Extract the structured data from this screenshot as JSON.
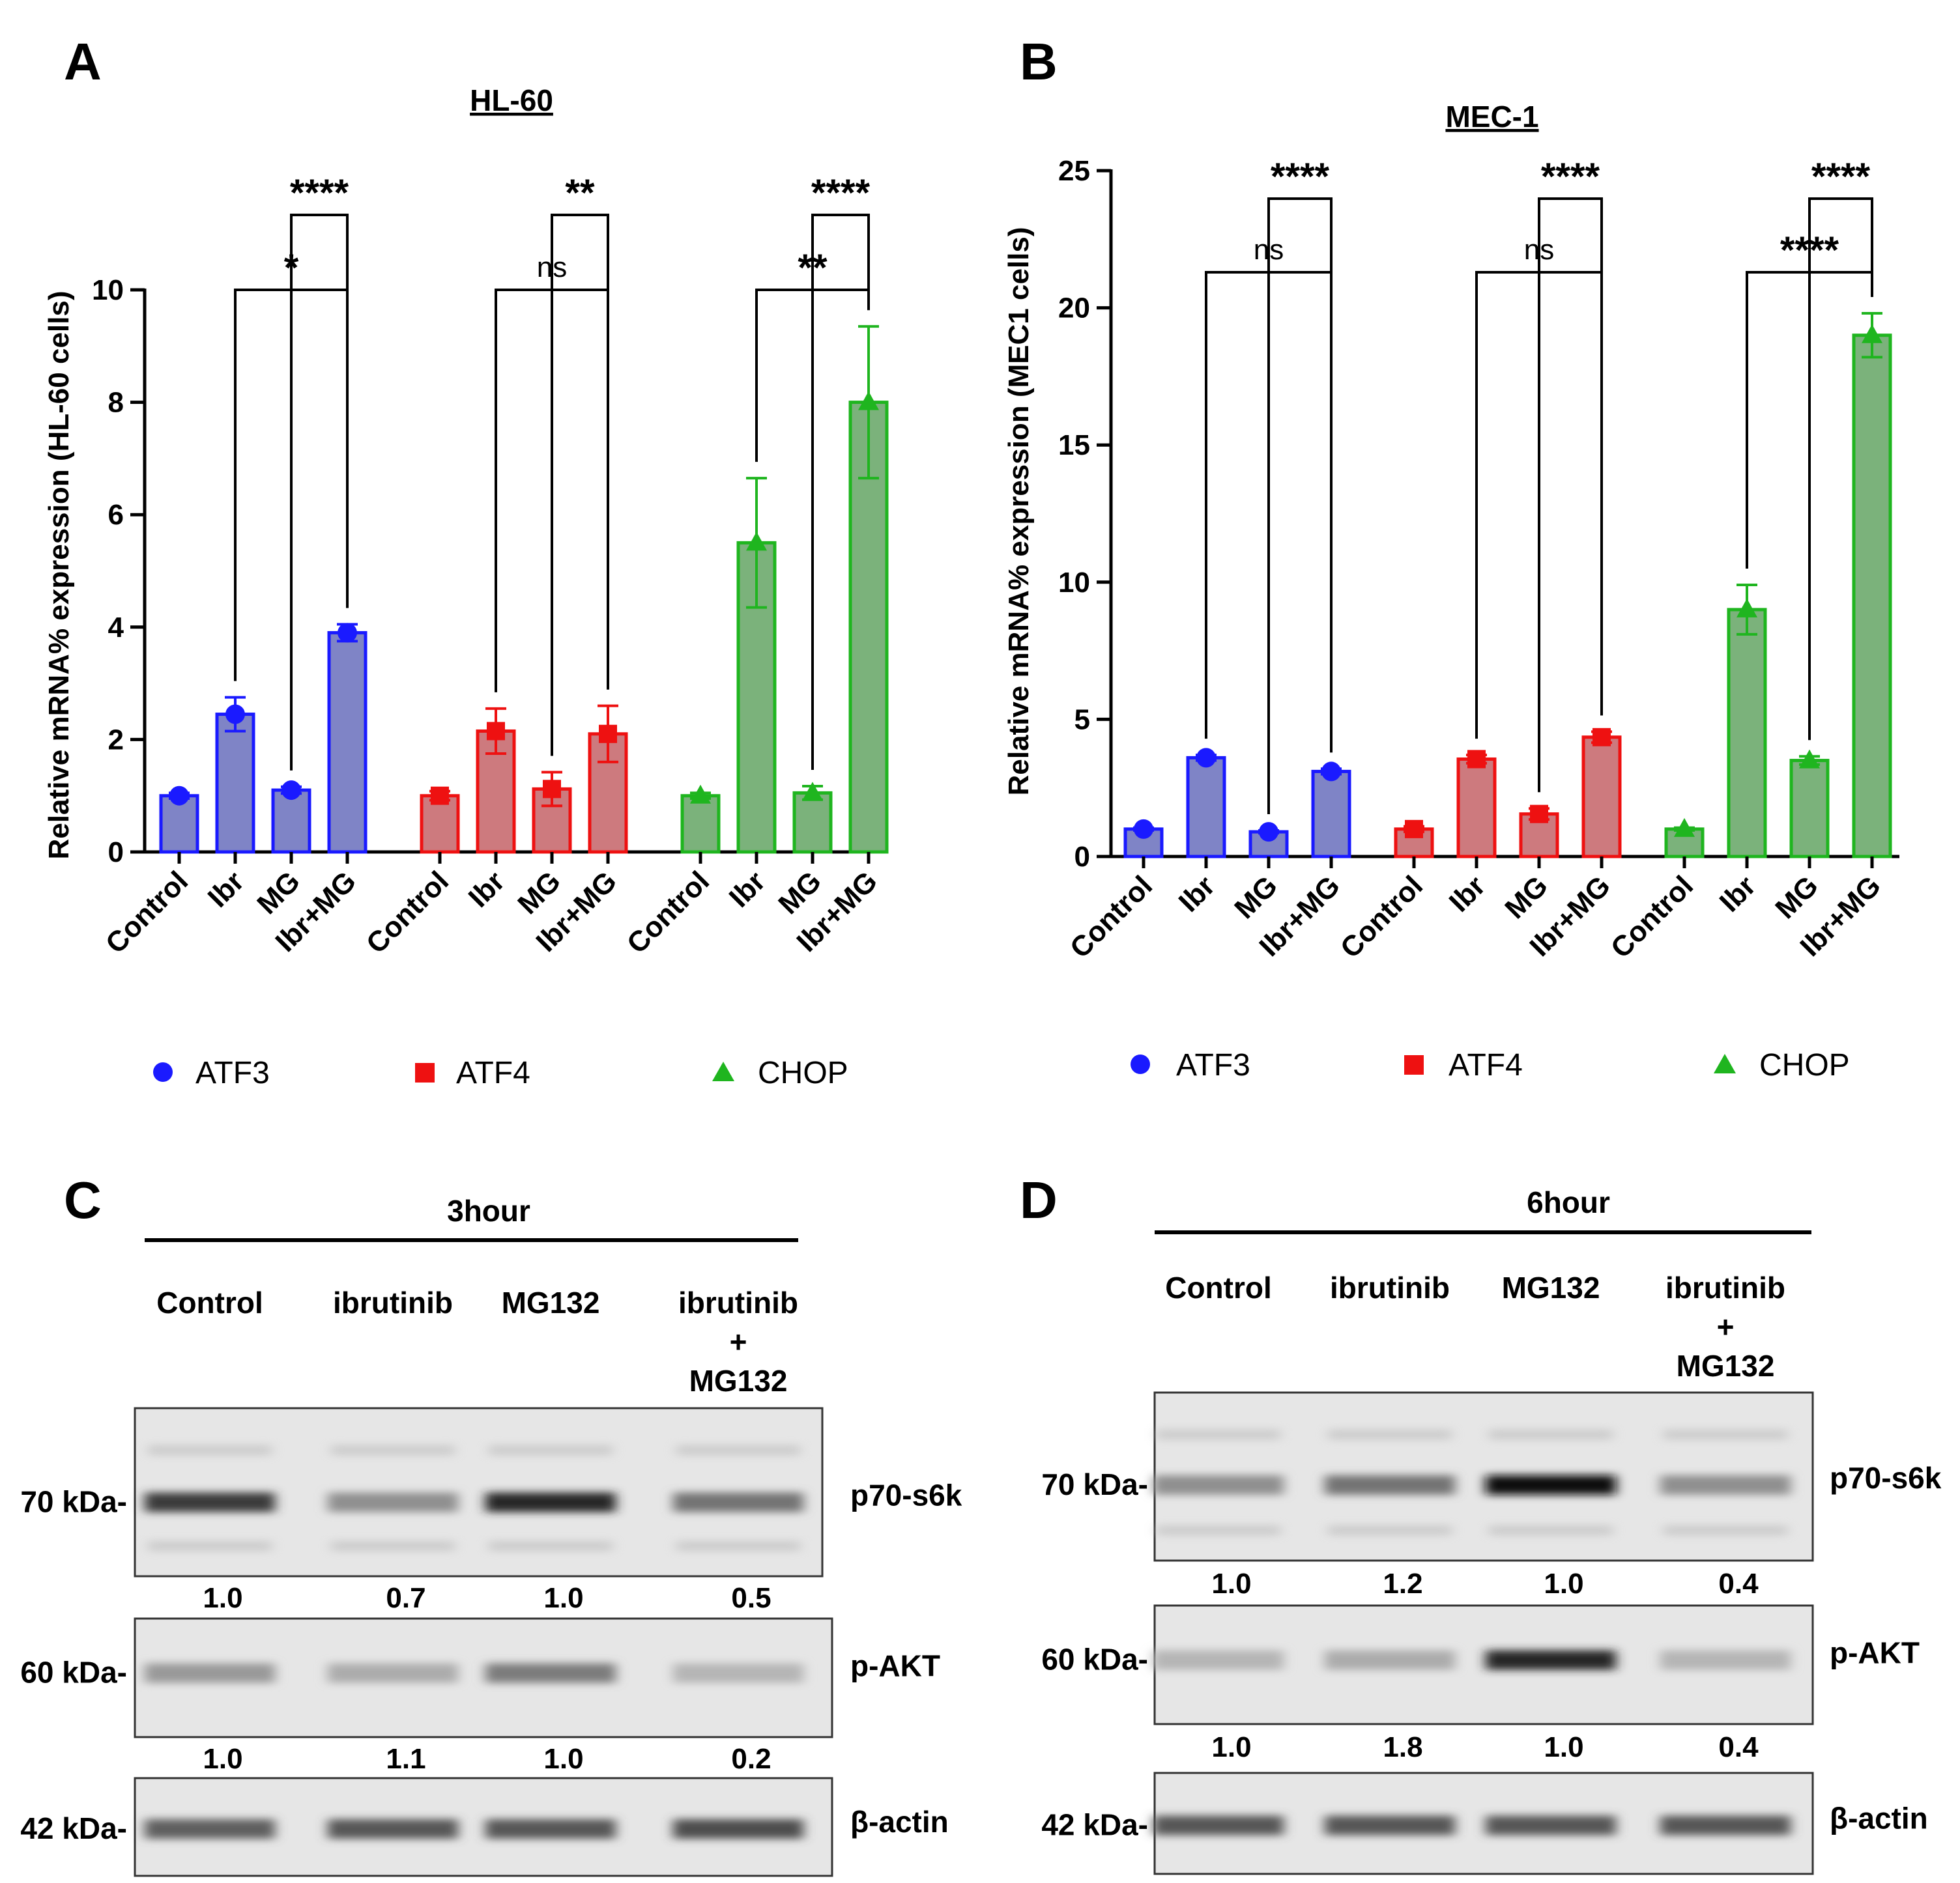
{
  "colors": {
    "ATF3": "#1a1aff",
    "ATF4": "#ee1111",
    "CHOP": "#1fb51f",
    "ATF3_fill": "#7f84c6",
    "ATF4_fill": "#cd7a7e",
    "CHOP_fill": "#7bb27b"
  },
  "chart_data": [
    {
      "panel": "A",
      "type": "bar",
      "title": "HL-60",
      "ylabel": "Relative mRNA% expression (HL-60 cells)",
      "ylim": [
        0,
        10
      ],
      "yticks": [
        0,
        2,
        4,
        6,
        8,
        10
      ],
      "categories": [
        "Control",
        "Ibr",
        "MG",
        "Ibr+MG"
      ],
      "series": [
        {
          "name": "ATF3",
          "marker": "circle",
          "values": [
            1.0,
            2.45,
            1.1,
            3.9
          ],
          "errors": [
            0.05,
            0.3,
            0.06,
            0.15
          ]
        },
        {
          "name": "ATF4",
          "marker": "square",
          "values": [
            1.0,
            2.15,
            1.12,
            2.1
          ],
          "errors": [
            0.08,
            0.4,
            0.3,
            0.5
          ]
        },
        {
          "name": "CHOP",
          "marker": "triangle",
          "values": [
            1.0,
            5.5,
            1.05,
            8.0
          ],
          "errors": [
            0.05,
            1.15,
            0.12,
            1.35
          ]
        }
      ],
      "comparisons": [
        {
          "group": "ATF3",
          "from": "Ibr",
          "to": "Ibr+MG",
          "label": "*"
        },
        {
          "group": "ATF3",
          "from": "MG",
          "to": "Ibr+MG",
          "label": "****"
        },
        {
          "group": "ATF4",
          "from": "Ibr",
          "to": "Ibr+MG",
          "label": "ns"
        },
        {
          "group": "ATF4",
          "from": "MG",
          "to": "Ibr+MG",
          "label": "**"
        },
        {
          "group": "CHOP",
          "from": "Ibr",
          "to": "Ibr+MG",
          "label": "**"
        },
        {
          "group": "CHOP",
          "from": "MG",
          "to": "Ibr+MG",
          "label": "****"
        }
      ]
    },
    {
      "panel": "B",
      "type": "bar",
      "title": "MEC-1",
      "ylabel": "Relative mRNA% expression (MEC1 cells)",
      "ylim": [
        0,
        25
      ],
      "yticks": [
        0,
        5,
        10,
        15,
        20,
        25
      ],
      "categories": [
        "Control",
        "Ibr",
        "MG",
        "Ibr+MG"
      ],
      "series": [
        {
          "name": "ATF3",
          "marker": "circle",
          "values": [
            1.0,
            3.6,
            0.9,
            3.1
          ],
          "errors": [
            0.05,
            0.1,
            0.05,
            0.1
          ]
        },
        {
          "name": "ATF4",
          "marker": "square",
          "values": [
            1.0,
            3.55,
            1.55,
            4.35
          ],
          "errors": [
            0.1,
            0.15,
            0.2,
            0.2
          ]
        },
        {
          "name": "CHOP",
          "marker": "triangle",
          "values": [
            1.0,
            9.0,
            3.5,
            19.0
          ],
          "errors": [
            0.05,
            0.9,
            0.15,
            0.8
          ]
        }
      ],
      "comparisons": [
        {
          "group": "ATF3",
          "from": "Ibr",
          "to": "Ibr+MG",
          "label": "ns"
        },
        {
          "group": "ATF3",
          "from": "MG",
          "to": "Ibr+MG",
          "label": "****"
        },
        {
          "group": "ATF4",
          "from": "Ibr",
          "to": "Ibr+MG",
          "label": "ns"
        },
        {
          "group": "ATF4",
          "from": "MG",
          "to": "Ibr+MG",
          "label": "****"
        },
        {
          "group": "CHOP",
          "from": "Ibr",
          "to": "Ibr+MG",
          "label": "****"
        },
        {
          "group": "CHOP",
          "from": "MG",
          "to": "Ibr+MG",
          "label": "****"
        }
      ]
    }
  ],
  "legend": [
    "ATF3",
    "ATF4",
    "CHOP"
  ],
  "blots": [
    {
      "panel": "C",
      "time": "3hour",
      "lanes": [
        [
          "Control"
        ],
        [
          "ibrutinib"
        ],
        [
          "MG132"
        ],
        [
          "ibrutinib",
          "+",
          "MG132"
        ]
      ],
      "rows": [
        {
          "marker": "70 kDa-",
          "protein": "p70-s6k",
          "quant": [
            "1.0",
            "0.7",
            "1.0",
            "0.5"
          ],
          "band_intensity": [
            0.75,
            0.3,
            0.85,
            0.45
          ]
        },
        {
          "marker": "60 kDa-",
          "protein": "p-AKT",
          "quant": [
            "1.0",
            "1.1",
            "1.0",
            "0.2"
          ],
          "band_intensity": [
            0.25,
            0.15,
            0.4,
            0.1
          ]
        },
        {
          "marker": "42 kDa-",
          "protein": "β-actin",
          "quant": [],
          "band_intensity": [
            0.55,
            0.6,
            0.6,
            0.65
          ]
        }
      ]
    },
    {
      "panel": "D",
      "time": "6hour",
      "lanes": [
        [
          "Control"
        ],
        [
          "ibrutinib"
        ],
        [
          "MG132"
        ],
        [
          "ibrutinib",
          "+",
          "MG132"
        ]
      ],
      "rows": [
        {
          "marker": "70 kDa-",
          "protein": "p70-s6k",
          "quant": [
            "1.0",
            "1.2",
            "1.0",
            "0.4"
          ],
          "band_intensity": [
            0.3,
            0.45,
            1.0,
            0.3
          ]
        },
        {
          "marker": "60 kDa-",
          "protein": "p-AKT",
          "quant": [
            "1.0",
            "1.8",
            "1.0",
            "0.4"
          ],
          "band_intensity": [
            0.1,
            0.15,
            0.85,
            0.1
          ]
        },
        {
          "marker": "42 kDa-",
          "protein": "β-actin",
          "quant": [],
          "band_intensity": [
            0.6,
            0.6,
            0.6,
            0.6
          ]
        }
      ]
    }
  ]
}
